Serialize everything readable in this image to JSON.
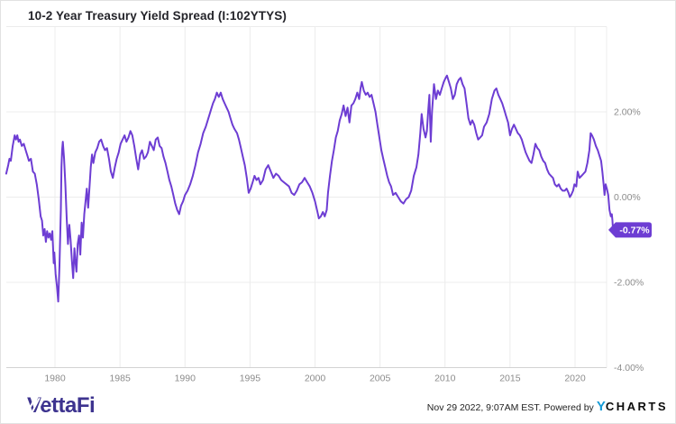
{
  "header": {
    "title": "10-2 Year Treasury Yield Spread (I:102YTYS)"
  },
  "footer": {
    "brand": "VettaFi",
    "timestamp": "Nov 29 2022, 9:07AM EST. ",
    "powered_by": "Powered by",
    "ycharts_y": "Y",
    "ycharts_charts": "CHARTS"
  },
  "chart_data": {
    "type": "line",
    "title": "10-2 Year Treasury Yield Spread (I:102YTYS)",
    "series_name": "10-2 Year Treasury Yield Spread",
    "unit": "%",
    "line_color": "#6d3dd3",
    "badge_color": "#6d3dd3",
    "grid_color": "#ececec",
    "axis_color": "#d2d2d2",
    "tick_label_color": "#8c8c8c",
    "last_value_label": "-0.77%",
    "last_value": -0.77,
    "xlim": [
      1976.2,
      2022.95
    ],
    "ylim": [
      -4,
      4
    ],
    "x_ticks": [
      1980,
      1985,
      1990,
      1995,
      2000,
      2005,
      2010,
      2015,
      2020
    ],
    "y_ticks": [
      {
        "value": 2,
        "label": "2.00%"
      },
      {
        "value": 0,
        "label": "0.00%"
      },
      {
        "value": -2,
        "label": "-2.00%"
      },
      {
        "value": -4,
        "label": "-4.00%"
      }
    ],
    "legend": "none",
    "points": [
      [
        1976.25,
        0.55
      ],
      [
        1976.4,
        0.75
      ],
      [
        1976.5,
        0.9
      ],
      [
        1976.6,
        0.85
      ],
      [
        1976.75,
        1.2
      ],
      [
        1976.9,
        1.45
      ],
      [
        1977.0,
        1.35
      ],
      [
        1977.1,
        1.45
      ],
      [
        1977.2,
        1.3
      ],
      [
        1977.3,
        1.35
      ],
      [
        1977.45,
        1.2
      ],
      [
        1977.6,
        1.25
      ],
      [
        1977.75,
        1.1
      ],
      [
        1977.9,
        0.95
      ],
      [
        1978.0,
        0.85
      ],
      [
        1978.15,
        0.9
      ],
      [
        1978.3,
        0.6
      ],
      [
        1978.45,
        0.55
      ],
      [
        1978.6,
        0.3
      ],
      [
        1978.75,
        -0.05
      ],
      [
        1978.9,
        -0.45
      ],
      [
        1979.0,
        -0.55
      ],
      [
        1979.1,
        -0.9
      ],
      [
        1979.2,
        -0.75
      ],
      [
        1979.3,
        -1.05
      ],
      [
        1979.4,
        -0.8
      ],
      [
        1979.5,
        -0.95
      ],
      [
        1979.6,
        -0.85
      ],
      [
        1979.7,
        -1.0
      ],
      [
        1979.8,
        -0.8
      ],
      [
        1979.9,
        -1.55
      ],
      [
        1979.95,
        -1.3
      ],
      [
        1980.05,
        -1.8
      ],
      [
        1980.15,
        -2.1
      ],
      [
        1980.25,
        -2.45
      ],
      [
        1980.35,
        -1.6
      ],
      [
        1980.45,
        -0.3
      ],
      [
        1980.5,
        0.7
      ],
      [
        1980.55,
        1.1
      ],
      [
        1980.6,
        1.3
      ],
      [
        1980.7,
        0.9
      ],
      [
        1980.8,
        0.3
      ],
      [
        1980.9,
        -0.5
      ],
      [
        1981.0,
        -1.1
      ],
      [
        1981.1,
        -0.65
      ],
      [
        1981.2,
        -1.0
      ],
      [
        1981.3,
        -1.5
      ],
      [
        1981.4,
        -1.9
      ],
      [
        1981.5,
        -1.2
      ],
      [
        1981.55,
        -1.45
      ],
      [
        1981.65,
        -1.75
      ],
      [
        1981.75,
        -1.1
      ],
      [
        1981.85,
        -0.9
      ],
      [
        1981.95,
        -1.35
      ],
      [
        1982.05,
        -0.6
      ],
      [
        1982.15,
        -0.95
      ],
      [
        1982.25,
        -0.4
      ],
      [
        1982.35,
        -0.1
      ],
      [
        1982.45,
        0.2
      ],
      [
        1982.55,
        -0.25
      ],
      [
        1982.65,
        0.2
      ],
      [
        1982.75,
        0.7
      ],
      [
        1982.85,
        1.0
      ],
      [
        1982.95,
        0.8
      ],
      [
        1983.1,
        1.05
      ],
      [
        1983.25,
        1.15
      ],
      [
        1983.4,
        1.3
      ],
      [
        1983.55,
        1.35
      ],
      [
        1983.7,
        1.2
      ],
      [
        1983.85,
        1.1
      ],
      [
        1984.0,
        1.15
      ],
      [
        1984.15,
        0.9
      ],
      [
        1984.3,
        0.6
      ],
      [
        1984.45,
        0.45
      ],
      [
        1984.6,
        0.7
      ],
      [
        1984.75,
        0.9
      ],
      [
        1984.9,
        1.05
      ],
      [
        1985.05,
        1.25
      ],
      [
        1985.2,
        1.35
      ],
      [
        1985.35,
        1.45
      ],
      [
        1985.5,
        1.3
      ],
      [
        1985.65,
        1.4
      ],
      [
        1985.8,
        1.55
      ],
      [
        1985.95,
        1.45
      ],
      [
        1986.1,
        1.2
      ],
      [
        1986.25,
        0.9
      ],
      [
        1986.4,
        0.65
      ],
      [
        1986.55,
        1.0
      ],
      [
        1986.7,
        1.1
      ],
      [
        1986.85,
        0.9
      ],
      [
        1987.0,
        0.95
      ],
      [
        1987.15,
        1.05
      ],
      [
        1987.3,
        1.3
      ],
      [
        1987.45,
        1.2
      ],
      [
        1987.6,
        1.1
      ],
      [
        1987.75,
        1.35
      ],
      [
        1987.9,
        1.4
      ],
      [
        1988.05,
        1.2
      ],
      [
        1988.2,
        1.15
      ],
      [
        1988.35,
        0.95
      ],
      [
        1988.5,
        0.8
      ],
      [
        1988.65,
        0.6
      ],
      [
        1988.8,
        0.4
      ],
      [
        1988.95,
        0.25
      ],
      [
        1989.1,
        0.05
      ],
      [
        1989.25,
        -0.15
      ],
      [
        1989.4,
        -0.3
      ],
      [
        1989.55,
        -0.4
      ],
      [
        1989.7,
        -0.2
      ],
      [
        1989.85,
        -0.1
      ],
      [
        1990.0,
        0.05
      ],
      [
        1990.2,
        0.15
      ],
      [
        1990.4,
        0.3
      ],
      [
        1990.6,
        0.5
      ],
      [
        1990.8,
        0.75
      ],
      [
        1991.0,
        1.05
      ],
      [
        1991.2,
        1.25
      ],
      [
        1991.4,
        1.5
      ],
      [
        1991.6,
        1.65
      ],
      [
        1991.8,
        1.85
      ],
      [
        1992.0,
        2.05
      ],
      [
        1992.15,
        2.2
      ],
      [
        1992.3,
        2.3
      ],
      [
        1992.45,
        2.45
      ],
      [
        1992.6,
        2.35
      ],
      [
        1992.75,
        2.45
      ],
      [
        1992.9,
        2.3
      ],
      [
        1993.05,
        2.2
      ],
      [
        1993.2,
        2.1
      ],
      [
        1993.35,
        2.0
      ],
      [
        1993.5,
        1.85
      ],
      [
        1993.65,
        1.7
      ],
      [
        1993.8,
        1.6
      ],
      [
        1994.0,
        1.5
      ],
      [
        1994.15,
        1.35
      ],
      [
        1994.3,
        1.15
      ],
      [
        1994.45,
        0.95
      ],
      [
        1994.6,
        0.75
      ],
      [
        1994.75,
        0.45
      ],
      [
        1994.9,
        0.1
      ],
      [
        1995.05,
        0.2
      ],
      [
        1995.2,
        0.35
      ],
      [
        1995.35,
        0.5
      ],
      [
        1995.5,
        0.4
      ],
      [
        1995.65,
        0.45
      ],
      [
        1995.8,
        0.3
      ],
      [
        1996.0,
        0.4
      ],
      [
        1996.2,
        0.65
      ],
      [
        1996.4,
        0.75
      ],
      [
        1996.6,
        0.6
      ],
      [
        1996.8,
        0.45
      ],
      [
        1997.0,
        0.55
      ],
      [
        1997.2,
        0.5
      ],
      [
        1997.4,
        0.4
      ],
      [
        1997.6,
        0.35
      ],
      [
        1997.8,
        0.3
      ],
      [
        1998.0,
        0.25
      ],
      [
        1998.2,
        0.1
      ],
      [
        1998.4,
        0.05
      ],
      [
        1998.6,
        0.15
      ],
      [
        1998.8,
        0.3
      ],
      [
        1999.0,
        0.35
      ],
      [
        1999.2,
        0.45
      ],
      [
        1999.4,
        0.35
      ],
      [
        1999.6,
        0.25
      ],
      [
        1999.8,
        0.1
      ],
      [
        2000.0,
        -0.1
      ],
      [
        2000.15,
        -0.3
      ],
      [
        2000.3,
        -0.5
      ],
      [
        2000.45,
        -0.45
      ],
      [
        2000.6,
        -0.35
      ],
      [
        2000.75,
        -0.45
      ],
      [
        2000.9,
        -0.3
      ],
      [
        2001.0,
        0.1
      ],
      [
        2001.15,
        0.5
      ],
      [
        2001.3,
        0.85
      ],
      [
        2001.45,
        1.1
      ],
      [
        2001.6,
        1.4
      ],
      [
        2001.75,
        1.55
      ],
      [
        2001.9,
        1.8
      ],
      [
        2002.05,
        1.95
      ],
      [
        2002.2,
        2.15
      ],
      [
        2002.35,
        1.9
      ],
      [
        2002.5,
        2.1
      ],
      [
        2002.65,
        1.75
      ],
      [
        2002.8,
        2.15
      ],
      [
        2002.95,
        2.2
      ],
      [
        2003.1,
        2.3
      ],
      [
        2003.25,
        2.45
      ],
      [
        2003.4,
        2.3
      ],
      [
        2003.5,
        2.55
      ],
      [
        2003.6,
        2.7
      ],
      [
        2003.75,
        2.5
      ],
      [
        2003.9,
        2.4
      ],
      [
        2004.05,
        2.45
      ],
      [
        2004.2,
        2.35
      ],
      [
        2004.35,
        2.4
      ],
      [
        2004.5,
        2.2
      ],
      [
        2004.65,
        2.0
      ],
      [
        2004.8,
        1.7
      ],
      [
        2004.95,
        1.4
      ],
      [
        2005.1,
        1.1
      ],
      [
        2005.25,
        0.9
      ],
      [
        2005.4,
        0.7
      ],
      [
        2005.55,
        0.5
      ],
      [
        2005.7,
        0.35
      ],
      [
        2005.85,
        0.25
      ],
      [
        2006.0,
        0.05
      ],
      [
        2006.2,
        0.1
      ],
      [
        2006.4,
        0.0
      ],
      [
        2006.6,
        -0.1
      ],
      [
        2006.8,
        -0.15
      ],
      [
        2007.0,
        -0.05
      ],
      [
        2007.2,
        0.0
      ],
      [
        2007.4,
        0.15
      ],
      [
        2007.6,
        0.5
      ],
      [
        2007.8,
        0.7
      ],
      [
        2007.95,
        1.0
      ],
      [
        2008.1,
        1.5
      ],
      [
        2008.2,
        1.95
      ],
      [
        2008.35,
        1.6
      ],
      [
        2008.5,
        1.4
      ],
      [
        2008.6,
        1.55
      ],
      [
        2008.7,
        2.0
      ],
      [
        2008.8,
        2.4
      ],
      [
        2008.9,
        1.3
      ],
      [
        2009.0,
        2.0
      ],
      [
        2009.15,
        2.65
      ],
      [
        2009.3,
        2.3
      ],
      [
        2009.45,
        2.5
      ],
      [
        2009.6,
        2.4
      ],
      [
        2009.75,
        2.55
      ],
      [
        2009.9,
        2.7
      ],
      [
        2010.05,
        2.8
      ],
      [
        2010.15,
        2.85
      ],
      [
        2010.3,
        2.7
      ],
      [
        2010.45,
        2.55
      ],
      [
        2010.6,
        2.3
      ],
      [
        2010.75,
        2.4
      ],
      [
        2010.9,
        2.65
      ],
      [
        2011.05,
        2.75
      ],
      [
        2011.2,
        2.8
      ],
      [
        2011.35,
        2.65
      ],
      [
        2011.5,
        2.55
      ],
      [
        2011.65,
        2.2
      ],
      [
        2011.8,
        1.85
      ],
      [
        2011.95,
        1.7
      ],
      [
        2012.1,
        1.8
      ],
      [
        2012.25,
        1.7
      ],
      [
        2012.4,
        1.5
      ],
      [
        2012.55,
        1.35
      ],
      [
        2012.7,
        1.4
      ],
      [
        2012.85,
        1.45
      ],
      [
        2013.0,
        1.65
      ],
      [
        2013.2,
        1.75
      ],
      [
        2013.4,
        1.95
      ],
      [
        2013.6,
        2.3
      ],
      [
        2013.8,
        2.5
      ],
      [
        2013.95,
        2.55
      ],
      [
        2014.1,
        2.4
      ],
      [
        2014.25,
        2.3
      ],
      [
        2014.4,
        2.2
      ],
      [
        2014.55,
        2.05
      ],
      [
        2014.7,
        1.9
      ],
      [
        2014.85,
        1.75
      ],
      [
        2015.0,
        1.45
      ],
      [
        2015.15,
        1.6
      ],
      [
        2015.3,
        1.7
      ],
      [
        2015.45,
        1.6
      ],
      [
        2015.6,
        1.5
      ],
      [
        2015.75,
        1.45
      ],
      [
        2015.9,
        1.35
      ],
      [
        2016.05,
        1.2
      ],
      [
        2016.2,
        1.05
      ],
      [
        2016.35,
        0.95
      ],
      [
        2016.5,
        0.85
      ],
      [
        2016.65,
        0.8
      ],
      [
        2016.8,
        1.0
      ],
      [
        2016.95,
        1.25
      ],
      [
        2017.1,
        1.15
      ],
      [
        2017.25,
        1.1
      ],
      [
        2017.4,
        0.95
      ],
      [
        2017.55,
        0.85
      ],
      [
        2017.7,
        0.8
      ],
      [
        2017.85,
        0.65
      ],
      [
        2018.0,
        0.55
      ],
      [
        2018.15,
        0.5
      ],
      [
        2018.3,
        0.45
      ],
      [
        2018.45,
        0.3
      ],
      [
        2018.6,
        0.25
      ],
      [
        2018.75,
        0.3
      ],
      [
        2018.9,
        0.2
      ],
      [
        2019.05,
        0.15
      ],
      [
        2019.2,
        0.15
      ],
      [
        2019.35,
        0.2
      ],
      [
        2019.5,
        0.1
      ],
      [
        2019.6,
        0.0
      ],
      [
        2019.7,
        0.05
      ],
      [
        2019.85,
        0.15
      ],
      [
        2019.95,
        0.3
      ],
      [
        2020.1,
        0.25
      ],
      [
        2020.2,
        0.6
      ],
      [
        2020.35,
        0.45
      ],
      [
        2020.5,
        0.5
      ],
      [
        2020.65,
        0.55
      ],
      [
        2020.8,
        0.6
      ],
      [
        2020.95,
        0.8
      ],
      [
        2021.1,
        1.1
      ],
      [
        2021.2,
        1.5
      ],
      [
        2021.3,
        1.45
      ],
      [
        2021.45,
        1.35
      ],
      [
        2021.6,
        1.2
      ],
      [
        2021.75,
        1.1
      ],
      [
        2021.9,
        0.95
      ],
      [
        2022.0,
        0.85
      ],
      [
        2022.1,
        0.6
      ],
      [
        2022.2,
        0.3
      ],
      [
        2022.27,
        0.05
      ],
      [
        2022.35,
        0.3
      ],
      [
        2022.45,
        0.2
      ],
      [
        2022.55,
        0.05
      ],
      [
        2022.65,
        -0.3
      ],
      [
        2022.75,
        -0.45
      ],
      [
        2022.83,
        -0.4
      ],
      [
        2022.88,
        -0.55
      ],
      [
        2022.92,
        -0.77
      ]
    ]
  }
}
